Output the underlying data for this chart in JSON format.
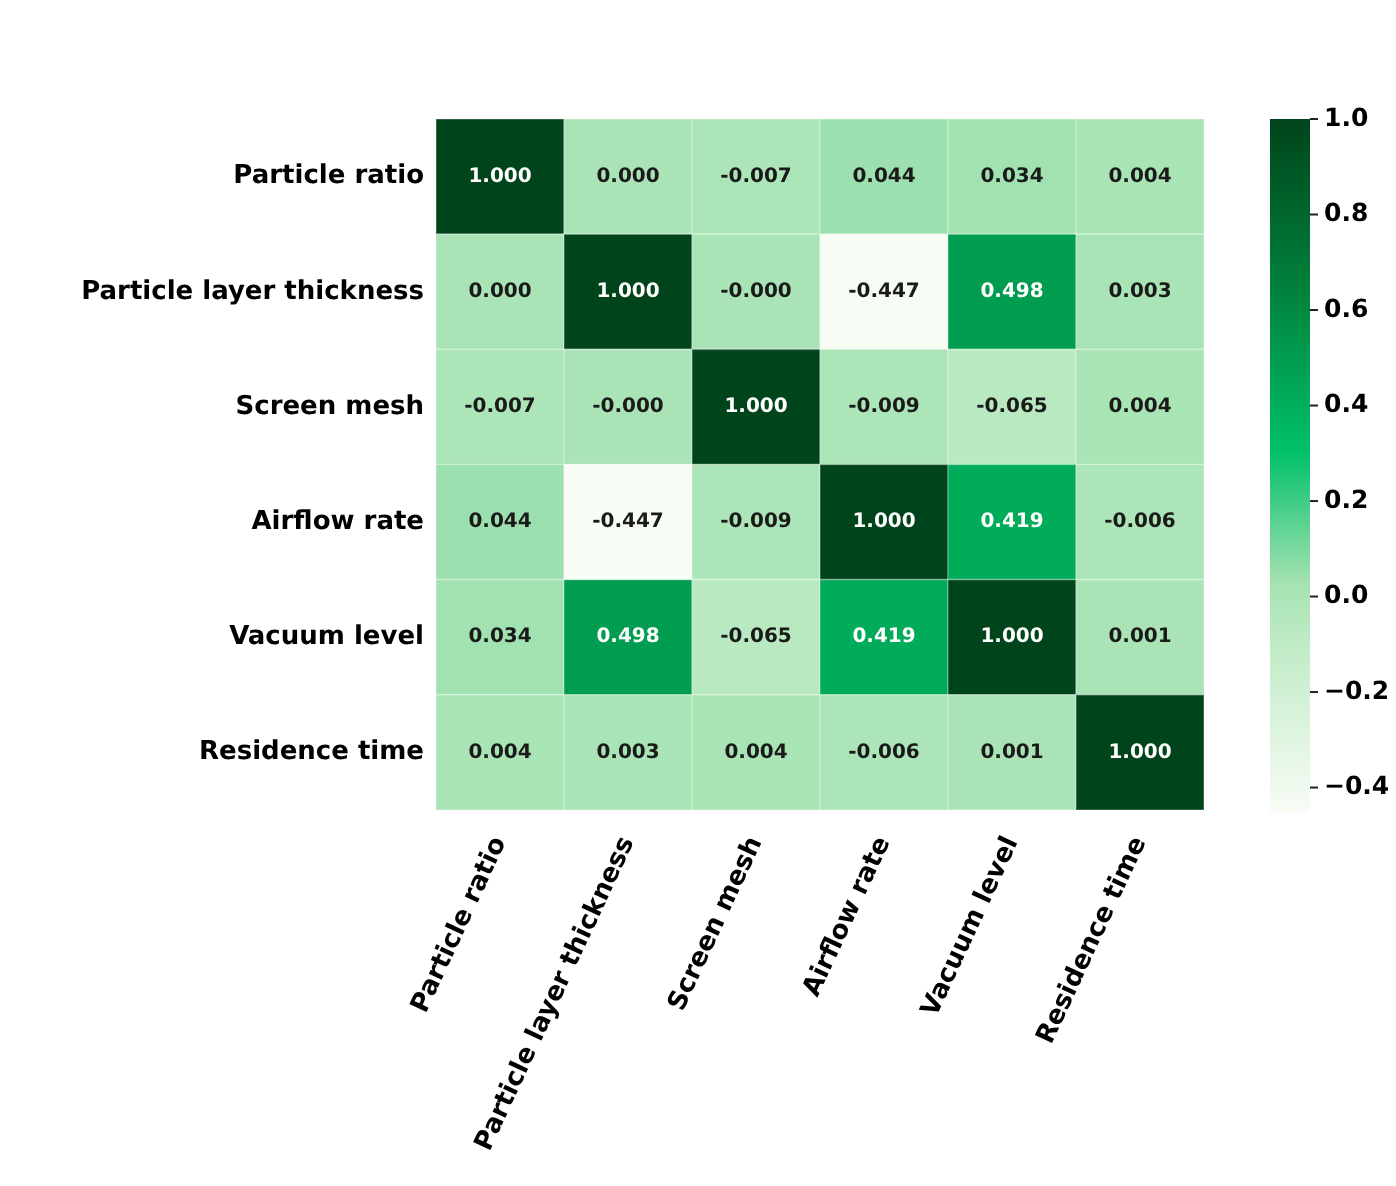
{
  "chart_data": {
    "type": "heatmap",
    "categories": [
      "Particle ratio",
      "Particle layer thickness",
      "Screen mesh",
      "Airflow rate",
      "Vacuum level",
      "Residence time"
    ],
    "y_categories": [
      "Particle ratio",
      "Particle layer thickness",
      "Screen mesh",
      "Airflow rate",
      "Vacuum level",
      "Residence time"
    ],
    "cells": [
      [
        1.0,
        0.0,
        -0.007,
        0.044,
        0.034,
        0.004
      ],
      [
        0.0,
        1.0,
        0.0,
        -0.447,
        0.498,
        0.003
      ],
      [
        -0.007,
        0.0,
        1.0,
        -0.009,
        -0.065,
        0.004
      ],
      [
        0.044,
        -0.447,
        -0.009,
        1.0,
        0.419,
        -0.006
      ],
      [
        0.034,
        0.498,
        -0.065,
        0.419,
        1.0,
        0.001
      ],
      [
        0.004,
        0.003,
        0.004,
        -0.006,
        0.001,
        1.0
      ]
    ],
    "cell_labels": [
      [
        "1.000",
        "0.000",
        "-0.007",
        "0.044",
        "0.034",
        "0.004"
      ],
      [
        "0.000",
        "1.000",
        "-0.000",
        "-0.447",
        "0.498",
        "0.003"
      ],
      [
        "-0.007",
        "-0.000",
        "1.000",
        "-0.009",
        "-0.065",
        "0.004"
      ],
      [
        "0.044",
        "-0.447",
        "-0.009",
        "1.000",
        "0.419",
        "-0.006"
      ],
      [
        "0.034",
        "0.498",
        "-0.065",
        "0.419",
        "1.000",
        "0.001"
      ],
      [
        "0.004",
        "0.003",
        "0.004",
        "-0.006",
        "0.001",
        "1.000"
      ]
    ],
    "clim": [
      -0.447,
      1.0
    ],
    "cticks": [
      {
        "value": 1.0,
        "label": "1.0"
      },
      {
        "value": 0.8,
        "label": "0.8"
      },
      {
        "value": 0.6,
        "label": "0.6"
      },
      {
        "value": 0.4,
        "label": "0.4"
      },
      {
        "value": 0.2,
        "label": "0.2"
      },
      {
        "value": 0.0,
        "label": "0.0"
      },
      {
        "value": -0.2,
        "label": "−0.2"
      },
      {
        "value": -0.4,
        "label": "−0.4"
      }
    ]
  }
}
